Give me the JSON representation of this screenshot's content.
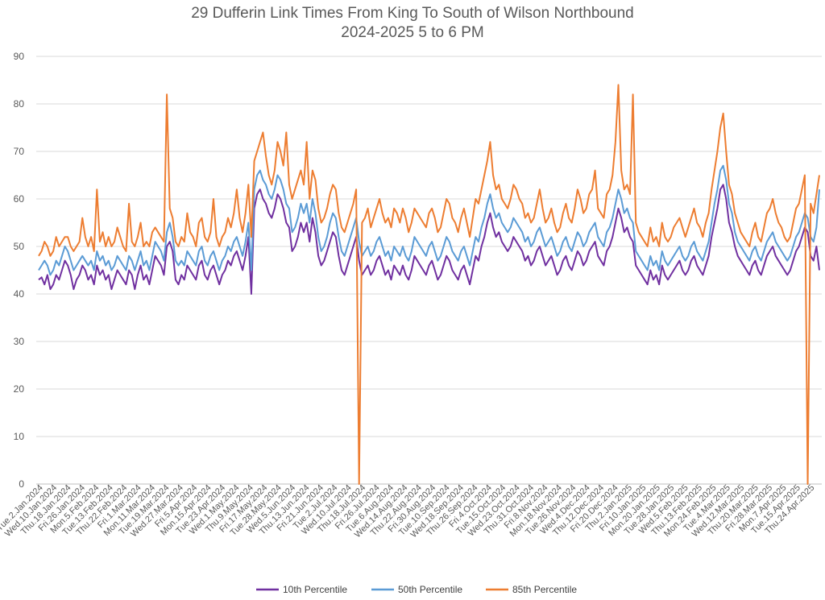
{
  "chart_data": {
    "type": "line",
    "title": "29 Dufferin Link Times From King To South of Wilson Northbound",
    "subtitle": "2024-2025 5 to 6 PM",
    "xlabel": "",
    "ylabel": "",
    "ylim": [
      0,
      90
    ],
    "yticks": [
      0,
      10,
      20,
      30,
      40,
      50,
      60,
      70,
      80,
      90
    ],
    "grid": true,
    "legend_position": "bottom",
    "x_tick_labels": [
      "Tue.2.Jan.2024",
      "Wed.10.Jan.2024",
      "Thu.18.Jan.2024",
      "Fri.26.Jan.2024",
      "Mon.5.Feb.2024",
      "Tue.13.Feb.2024",
      "Thu.22.Feb.2024",
      "Fri.1.Mar.2024",
      "Mon.11.Mar.2024",
      "Tue.19.Mar.2024",
      "Wed.27.Mar.2024",
      "Fri.5.Apr.2024",
      "Mon.15.Apr.2024",
      "Tue.23.Apr.2024",
      "Wed.1.May.2024",
      "Thu.9.May.2024",
      "Fri.17.May.2024",
      "Tue.28.May.2024",
      "Wed.5.Jun.2024",
      "Thu.13.Jun.2024",
      "Fri.21.Jun.2024",
      "Tue.2.Jul.2024",
      "Wed.10.Jul.2024",
      "Thu.18.Jul.2024",
      "Fri.26.Jul.2024",
      "Tue.6.Aug.2024",
      "Wed.14.Aug.2024",
      "Thu.22.Aug.2024",
      "Fri.30.Aug.2024",
      "Tue.10.Sep.2024",
      "Wed.18.Sep.2024",
      "Thu.26.Sep.2024",
      "Fri.4.Oct.2024",
      "Tue.15.Oct.2024",
      "Wed.23.Oct.2024",
      "Thu.31.Oct.2024",
      "Fri.8.Nov.2024",
      "Mon.18.Nov.2024",
      "Tue.26.Nov.2024",
      "Wed.4.Dec.2024",
      "Thu.12.Dec.2024",
      "Fri.20.Dec.2024",
      "Thu.2.Jan.2025",
      "Fri.10.Jan.2025",
      "Mon.20.Jan.2025",
      "Tue.28.Jan.2025",
      "Wed.5.Feb.2025",
      "Thu.13.Feb.2025",
      "Mon.24.Feb.2025",
      "Tue.4.Mar.2025",
      "Wed.12.Mar.2025",
      "Thu.20.Mar.2025",
      "Fri.28.Mar.2025",
      "Mon.7.Apr.2025",
      "Tue.15.Apr.2025",
      "Thu.24.Apr.2025"
    ],
    "series": [
      {
        "name": "10th Percentile",
        "color": "#7030A0",
        "values": [
          43,
          43.5,
          42,
          44,
          41,
          42,
          44,
          43,
          45,
          47,
          46,
          44,
          41,
          43,
          44,
          46,
          45,
          43,
          44,
          42,
          46,
          44,
          45,
          43,
          44,
          41,
          43,
          45,
          44,
          43,
          42,
          45,
          44,
          41,
          44,
          46,
          43,
          44,
          42,
          45,
          48,
          47,
          46,
          44,
          50,
          51,
          49,
          43,
          42,
          44,
          43,
          46,
          45,
          44,
          43,
          46,
          47,
          44,
          43,
          45,
          46,
          44,
          42,
          44,
          45,
          47,
          46,
          48,
          49,
          47,
          45,
          48,
          52,
          40,
          58,
          61,
          62,
          60,
          59,
          57,
          56,
          58,
          61,
          60,
          58,
          55,
          54,
          49,
          50,
          52,
          55,
          53,
          55,
          51,
          56,
          53,
          48,
          46,
          47,
          49,
          51,
          53,
          52,
          48,
          45,
          44,
          46,
          48,
          50,
          52,
          47,
          44,
          45,
          46,
          44,
          45,
          47,
          48,
          46,
          44,
          45,
          43,
          46,
          45,
          44,
          46,
          44,
          43,
          45,
          48,
          47,
          46,
          45,
          44,
          46,
          47,
          45,
          43,
          44,
          46,
          48,
          47,
          45,
          44,
          43,
          45,
          46,
          44,
          42,
          45,
          48,
          47,
          50,
          52,
          55,
          57,
          54,
          52,
          53,
          51,
          50,
          49,
          50,
          52,
          51,
          50,
          49,
          47,
          48,
          46,
          47,
          49,
          50,
          48,
          46,
          47,
          48,
          46,
          44,
          45,
          47,
          48,
          46,
          45,
          47,
          49,
          48,
          46,
          47,
          49,
          50,
          51,
          48,
          47,
          46,
          49,
          50,
          52,
          55,
          58,
          56,
          53,
          54,
          52,
          51,
          46,
          45,
          44,
          43,
          42,
          45,
          43,
          44,
          42,
          46,
          44,
          43,
          44,
          45,
          46,
          47,
          45,
          44,
          45,
          47,
          48,
          46,
          45,
          44,
          46,
          48,
          52,
          55,
          58,
          62,
          63,
          60,
          55,
          53,
          50,
          48,
          47,
          46,
          45,
          44,
          46,
          47,
          45,
          44,
          46,
          48,
          49,
          50,
          48,
          47,
          46,
          45,
          44,
          45,
          47,
          49,
          50,
          52,
          54,
          53,
          48,
          47,
          50,
          45
        ]
      },
      {
        "name": "50th Percentile",
        "color": "#5B9BD5",
        "values": [
          45,
          46,
          47,
          46,
          44,
          45,
          47,
          46,
          48,
          50,
          49,
          47,
          45,
          46,
          47,
          48,
          47,
          46,
          47,
          45,
          49,
          47,
          48,
          46,
          47,
          45,
          46,
          48,
          47,
          46,
          45,
          48,
          47,
          45,
          47,
          49,
          46,
          47,
          45,
          48,
          51,
          50,
          49,
          47,
          53,
          55,
          52,
          47,
          46,
          47,
          46,
          49,
          48,
          47,
          46,
          49,
          50,
          47,
          46,
          48,
          49,
          47,
          45,
          47,
          48,
          50,
          49,
          51,
          52,
          50,
          48,
          51,
          55,
          45,
          62,
          65,
          66,
          64,
          63,
          61,
          60,
          62,
          65,
          64,
          62,
          59,
          58,
          53,
          54,
          56,
          59,
          57,
          59,
          55,
          60,
          57,
          52,
          49,
          50,
          52,
          55,
          57,
          56,
          52,
          49,
          48,
          50,
          52,
          54,
          56,
          51,
          48,
          49,
          50,
          48,
          49,
          51,
          52,
          50,
          48,
          49,
          47,
          50,
          49,
          48,
          50,
          48,
          47,
          49,
          52,
          51,
          50,
          49,
          48,
          50,
          51,
          49,
          47,
          48,
          50,
          52,
          51,
          49,
          48,
          47,
          49,
          50,
          48,
          46,
          49,
          52,
          51,
          54,
          56,
          59,
          61,
          58,
          56,
          57,
          55,
          54,
          53,
          54,
          56,
          55,
          54,
          53,
          51,
          52,
          50,
          51,
          53,
          54,
          52,
          50,
          51,
          52,
          50,
          48,
          49,
          51,
          52,
          50,
          49,
          51,
          53,
          52,
          50,
          51,
          53,
          54,
          55,
          52,
          51,
          50,
          53,
          54,
          56,
          59,
          62,
          60,
          57,
          58,
          56,
          55,
          49,
          48,
          47,
          46,
          45,
          48,
          46,
          47,
          45,
          49,
          47,
          46,
          47,
          48,
          49,
          50,
          48,
          47,
          48,
          50,
          51,
          49,
          48,
          47,
          49,
          51,
          55,
          59,
          62,
          66,
          67,
          64,
          59,
          57,
          53,
          51,
          50,
          49,
          48,
          47,
          49,
          50,
          48,
          47,
          49,
          51,
          52,
          53,
          51,
          50,
          49,
          48,
          47,
          48,
          50,
          52,
          53,
          55,
          57,
          56,
          52,
          51,
          54,
          62
        ]
      },
      {
        "name": "85th Percentile",
        "color": "#ED7D31",
        "values": [
          48,
          49,
          51,
          50,
          48,
          49,
          52,
          50,
          51,
          52,
          52,
          50,
          49,
          50,
          51,
          56,
          52,
          50,
          52,
          49,
          62,
          51,
          53,
          50,
          52,
          50,
          51,
          54,
          52,
          50,
          49,
          59,
          51,
          50,
          52,
          55,
          50,
          51,
          50,
          53,
          54,
          53,
          52,
          51,
          82,
          58,
          56,
          51,
          50,
          52,
          51,
          57,
          53,
          52,
          50,
          55,
          56,
          52,
          51,
          53,
          60,
          52,
          50,
          52,
          53,
          56,
          54,
          57,
          62,
          56,
          53,
          57,
          63,
          52,
          68,
          70,
          72,
          74,
          69,
          65,
          63,
          66,
          72,
          70,
          67,
          74,
          63,
          60,
          62,
          64,
          66,
          63,
          72,
          60,
          66,
          64,
          58,
          55,
          56,
          58,
          61,
          63,
          62,
          57,
          54,
          53,
          55,
          57,
          59,
          62,
          0,
          55,
          56,
          58,
          54,
          56,
          58,
          60,
          57,
          55,
          56,
          54,
          58,
          57,
          55,
          58,
          56,
          53,
          55,
          58,
          57,
          56,
          55,
          54,
          57,
          58,
          56,
          53,
          54,
          57,
          60,
          59,
          56,
          55,
          53,
          56,
          58,
          55,
          52,
          56,
          60,
          59,
          62,
          65,
          68,
          72,
          65,
          62,
          63,
          60,
          59,
          58,
          60,
          63,
          62,
          60,
          59,
          56,
          57,
          55,
          56,
          59,
          62,
          58,
          55,
          56,
          58,
          55,
          53,
          54,
          57,
          59,
          56,
          55,
          58,
          62,
          60,
          57,
          58,
          61,
          62,
          66,
          58,
          57,
          56,
          61,
          62,
          65,
          72,
          84,
          66,
          62,
          63,
          61,
          82,
          55,
          53,
          52,
          51,
          50,
          54,
          51,
          52,
          50,
          55,
          52,
          51,
          52,
          54,
          55,
          56,
          54,
          52,
          54,
          56,
          58,
          55,
          54,
          52,
          55,
          57,
          62,
          66,
          70,
          75,
          78,
          70,
          63,
          61,
          57,
          55,
          53,
          52,
          51,
          50,
          53,
          55,
          52,
          51,
          54,
          57,
          58,
          60,
          57,
          55,
          54,
          52,
          51,
          52,
          55,
          58,
          59,
          62,
          65,
          0,
          59,
          57,
          61,
          65
        ]
      }
    ]
  }
}
